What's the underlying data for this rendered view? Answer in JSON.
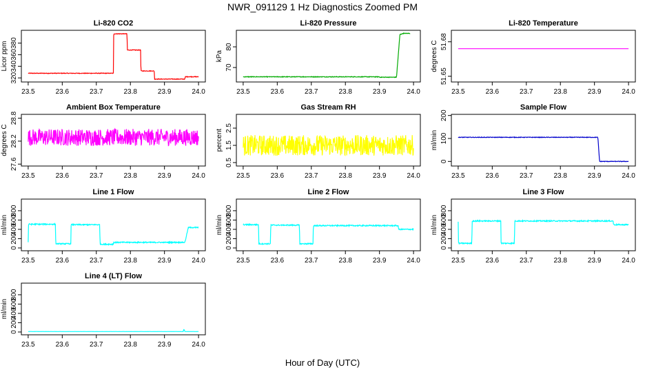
{
  "figure": {
    "title": "NWR_091129  1 Hz Diagnostics Zoomed PM",
    "xlabel": "Hour of Day (UTC)"
  },
  "chart_data": [
    {
      "type": "line",
      "title": "Li-820 CO2",
      "ylabel": "Licor ppm",
      "color": "#ff0000",
      "xlim": [
        23.48,
        24.02
      ],
      "xticks": [
        23.5,
        23.6,
        23.7,
        23.8,
        23.9,
        24.0
      ],
      "ylim": [
        313,
        402
      ],
      "yticks": [
        320,
        340,
        360,
        380
      ],
      "series": [
        {
          "name": "CO2",
          "noise": 0.5,
          "x": [
            23.5,
            23.75,
            23.751,
            23.79,
            23.791,
            23.83,
            23.831,
            23.87,
            23.871,
            23.96,
            23.961,
            24.0
          ],
          "y": [
            328,
            328,
            396,
            396,
            368,
            368,
            332,
            332,
            318,
            318,
            322,
            322
          ]
        }
      ]
    },
    {
      "type": "line",
      "title": "Li-820 Pressure",
      "ylabel": "kPa",
      "color": "#00aa00",
      "xlim": [
        23.48,
        24.02
      ],
      "xticks": [
        23.5,
        23.6,
        23.7,
        23.8,
        23.9,
        24.0
      ],
      "ylim": [
        63,
        88
      ],
      "yticks": [
        70,
        80
      ],
      "series": [
        {
          "name": "Pressure",
          "noise": 0.15,
          "x": [
            23.5,
            23.9,
            23.9,
            23.95,
            23.96,
            23.97,
            23.99
          ],
          "y": [
            65.5,
            65.5,
            65.3,
            65.3,
            86.0,
            86.5,
            86.5
          ]
        }
      ]
    },
    {
      "type": "line",
      "title": "Li-820 Temperature",
      "ylabel": "degrees C",
      "color": "#ff00ff",
      "xlim": [
        23.48,
        24.02
      ],
      "xticks": [
        23.5,
        23.6,
        23.7,
        23.8,
        23.9,
        24.0
      ],
      "ylim": [
        51.645,
        51.69
      ],
      "yticks": [
        51.65,
        51.68
      ],
      "series": [
        {
          "name": "Temperature",
          "noise": 0,
          "x": [
            23.5,
            24.0
          ],
          "y": [
            51.674,
            51.674
          ]
        }
      ]
    },
    {
      "type": "line",
      "title": "Ambient Box Temperature",
      "ylabel": "degrees C",
      "color": "#ff00ff",
      "xlim": [
        23.48,
        24.02
      ],
      "xticks": [
        23.5,
        23.6,
        23.7,
        23.8,
        23.9,
        24.0
      ],
      "ylim": [
        27.55,
        28.9
      ],
      "yticks": [
        27.6,
        28.2,
        28.8
      ],
      "series": [
        {
          "name": "Box Temp",
          "noise": 0.22,
          "x": [
            23.5,
            24.0
          ],
          "y": [
            28.3,
            28.3
          ]
        }
      ]
    },
    {
      "type": "line",
      "title": "Gas Stream RH",
      "ylabel": "percent",
      "color": "#ffff00",
      "xlim": [
        23.48,
        24.02
      ],
      "xticks": [
        23.5,
        23.6,
        23.7,
        23.8,
        23.9,
        24.0
      ],
      "ylim": [
        0.3,
        3.3
      ],
      "yticks": [
        0.5,
        1.5,
        2.5
      ],
      "series": [
        {
          "name": "RH",
          "noise": 0.6,
          "x": [
            23.5,
            24.0
          ],
          "y": [
            1.5,
            1.5
          ]
        }
      ]
    },
    {
      "type": "line",
      "title": "Sample Flow",
      "ylabel": "ml/min",
      "color": "#0000cc",
      "xlim": [
        23.48,
        24.02
      ],
      "xticks": [
        23.5,
        23.6,
        23.7,
        23.8,
        23.9,
        24.0
      ],
      "ylim": [
        -20,
        205
      ],
      "yticks": [
        0,
        100,
        200
      ],
      "series": [
        {
          "name": "Sample Flow",
          "noise": 1.2,
          "x": [
            23.5,
            23.91,
            23.915,
            24.0
          ],
          "y": [
            105,
            105,
            0,
            0
          ]
        }
      ]
    },
    {
      "type": "line",
      "title": "Line 1 Flow",
      "ylabel": "ml/min",
      "color": "#00ffff",
      "xlim": [
        23.48,
        24.02
      ],
      "xticks": [
        23.5,
        23.6,
        23.7,
        23.8,
        23.9,
        24.0
      ],
      "ylim": [
        -60,
        1050
      ],
      "yticks": [
        0,
        200,
        400,
        600,
        800
      ],
      "series": [
        {
          "name": "Line 1",
          "noise": 12,
          "x": [
            23.5,
            23.501,
            23.58,
            23.581,
            23.625,
            23.626,
            23.71,
            23.711,
            23.75,
            23.751,
            23.96,
            23.97,
            24.0
          ],
          "y": [
            120,
            510,
            510,
            90,
            90,
            500,
            500,
            80,
            80,
            120,
            120,
            440,
            440
          ]
        }
      ]
    },
    {
      "type": "line",
      "title": "Line 2 Flow",
      "ylabel": "ml/min",
      "color": "#00ffff",
      "xlim": [
        23.48,
        24.02
      ],
      "xticks": [
        23.5,
        23.6,
        23.7,
        23.8,
        23.9,
        24.0
      ],
      "ylim": [
        -60,
        1050
      ],
      "yticks": [
        0,
        200,
        400,
        600,
        800
      ],
      "series": [
        {
          "name": "Line 2",
          "noise": 12,
          "x": [
            23.5,
            23.545,
            23.546,
            23.58,
            23.581,
            23.665,
            23.666,
            23.705,
            23.706,
            23.955,
            23.956,
            24.0
          ],
          "y": [
            500,
            500,
            90,
            90,
            490,
            490,
            90,
            90,
            480,
            480,
            400,
            400
          ]
        }
      ]
    },
    {
      "type": "line",
      "title": "Line 3 Flow",
      "ylabel": "ml/min",
      "color": "#00ffff",
      "xlim": [
        23.48,
        24.02
      ],
      "xticks": [
        23.5,
        23.6,
        23.7,
        23.8,
        23.9,
        24.0
      ],
      "ylim": [
        -60,
        1050
      ],
      "yticks": [
        0,
        200,
        400,
        600,
        800
      ],
      "series": [
        {
          "name": "Line 3",
          "noise": 12,
          "x": [
            23.5,
            23.501,
            23.54,
            23.541,
            23.625,
            23.626,
            23.665,
            23.666,
            23.955,
            23.956,
            24.0
          ],
          "y": [
            560,
            100,
            100,
            580,
            580,
            100,
            100,
            580,
            580,
            500,
            500
          ]
        }
      ]
    },
    {
      "type": "line",
      "title": "Line 4 (LT) Flow",
      "ylabel": "ml/min",
      "color": "#00ffff",
      "xlim": [
        23.48,
        24.02
      ],
      "xticks": [
        23.5,
        23.6,
        23.7,
        23.8,
        23.9,
        24.0
      ],
      "ylim": [
        -60,
        1050
      ],
      "yticks": [
        0,
        200,
        400,
        600,
        800
      ],
      "series": [
        {
          "name": "Line 4",
          "noise": 1,
          "x": [
            23.5,
            23.955,
            23.957,
            23.96,
            24.0
          ],
          "y": [
            10,
            10,
            60,
            10,
            10
          ]
        }
      ]
    }
  ]
}
